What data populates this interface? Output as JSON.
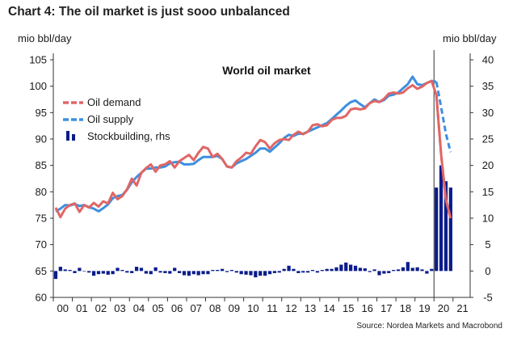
{
  "title": "Chart 4: The oil market is just sooo unbalanced",
  "source": "Source: Nordea Markets and Macrobond",
  "colors": {
    "demand": "#e06666",
    "supply": "#3d8fe0",
    "stock": "#0a1d8a",
    "axis": "#333333",
    "vline": "#333333"
  },
  "chart_data": {
    "type": "line",
    "title": "World oil market",
    "left_axis": {
      "label": "mio bbl/day",
      "ylim": [
        60,
        105
      ],
      "ticks": [
        60,
        65,
        70,
        75,
        80,
        85,
        90,
        95,
        100,
        105
      ]
    },
    "right_axis": {
      "label": "mio bbl/day",
      "ylim": [
        -5,
        40
      ],
      "ticks": [
        -5,
        0,
        5,
        10,
        15,
        20,
        25,
        30,
        35,
        40
      ]
    },
    "x_axis": {
      "xlim": [
        2000,
        2021.9
      ],
      "tick_labels": [
        "00",
        "01",
        "02",
        "03",
        "04",
        "05",
        "06",
        "07",
        "08",
        "09",
        "10",
        "11",
        "12",
        "13",
        "14",
        "15",
        "16",
        "17",
        "18",
        "19",
        "20",
        "21"
      ]
    },
    "grid": false,
    "legend_position": "top-left",
    "vertical_marker_x": 2020.0,
    "series": [
      {
        "name": "Oil demand",
        "axis": "left",
        "style": "solid",
        "points": [
          [
            2000.0,
            77.0
          ],
          [
            2000.25,
            75.2
          ],
          [
            2000.5,
            76.8
          ],
          [
            2000.75,
            77.5
          ],
          [
            2001.0,
            77.8
          ],
          [
            2001.25,
            76.2
          ],
          [
            2001.5,
            77.5
          ],
          [
            2001.75,
            77.0
          ],
          [
            2002.0,
            77.9
          ],
          [
            2002.25,
            77.2
          ],
          [
            2002.5,
            78.2
          ],
          [
            2002.75,
            77.8
          ],
          [
            2003.0,
            79.8
          ],
          [
            2003.25,
            78.6
          ],
          [
            2003.5,
            79.2
          ],
          [
            2003.75,
            80.5
          ],
          [
            2004.0,
            82.5
          ],
          [
            2004.25,
            81.2
          ],
          [
            2004.5,
            83.6
          ],
          [
            2004.75,
            84.5
          ],
          [
            2005.0,
            85.2
          ],
          [
            2005.25,
            83.8
          ],
          [
            2005.5,
            85.0
          ],
          [
            2005.75,
            85.2
          ],
          [
            2006.0,
            85.8
          ],
          [
            2006.25,
            84.6
          ],
          [
            2006.5,
            85.8
          ],
          [
            2006.75,
            86.4
          ],
          [
            2007.0,
            87.0
          ],
          [
            2007.25,
            86.0
          ],
          [
            2007.5,
            87.4
          ],
          [
            2007.75,
            88.5
          ],
          [
            2008.0,
            88.2
          ],
          [
            2008.25,
            86.6
          ],
          [
            2008.5,
            87.2
          ],
          [
            2008.75,
            86.2
          ],
          [
            2009.0,
            84.8
          ],
          [
            2009.25,
            84.6
          ],
          [
            2009.5,
            85.8
          ],
          [
            2009.75,
            86.5
          ],
          [
            2010.0,
            87.4
          ],
          [
            2010.25,
            87.2
          ],
          [
            2010.5,
            88.6
          ],
          [
            2010.75,
            89.8
          ],
          [
            2011.0,
            89.4
          ],
          [
            2011.25,
            88.2
          ],
          [
            2011.5,
            89.2
          ],
          [
            2011.75,
            89.8
          ],
          [
            2012.0,
            90.0
          ],
          [
            2012.25,
            89.8
          ],
          [
            2012.5,
            90.8
          ],
          [
            2012.75,
            91.4
          ],
          [
            2013.0,
            90.9
          ],
          [
            2013.25,
            91.4
          ],
          [
            2013.5,
            92.6
          ],
          [
            2013.75,
            92.8
          ],
          [
            2014.0,
            92.4
          ],
          [
            2014.25,
            92.6
          ],
          [
            2014.5,
            93.6
          ],
          [
            2014.75,
            94.0
          ],
          [
            2015.0,
            94.0
          ],
          [
            2015.25,
            94.4
          ],
          [
            2015.5,
            95.6
          ],
          [
            2015.75,
            95.8
          ],
          [
            2016.0,
            95.6
          ],
          [
            2016.25,
            95.8
          ],
          [
            2016.5,
            96.8
          ],
          [
            2016.75,
            97.2
          ],
          [
            2017.0,
            97.0
          ],
          [
            2017.25,
            97.6
          ],
          [
            2017.5,
            98.6
          ],
          [
            2017.75,
            98.8
          ],
          [
            2018.0,
            98.6
          ],
          [
            2018.25,
            98.8
          ],
          [
            2018.5,
            99.6
          ],
          [
            2018.75,
            100.2
          ],
          [
            2019.0,
            99.5
          ],
          [
            2019.25,
            99.9
          ],
          [
            2019.5,
            100.6
          ],
          [
            2019.75,
            101.0
          ],
          [
            2020.0,
            98.3
          ],
          [
            2020.25,
            87.0
          ],
          [
            2020.5,
            78.5
          ],
          [
            2020.75,
            75.0
          ]
        ]
      },
      {
        "name": "Oil supply",
        "axis": "left",
        "style": "solid",
        "points": [
          [
            2000.0,
            76.3
          ],
          [
            2000.25,
            76.8
          ],
          [
            2000.5,
            77.5
          ],
          [
            2000.75,
            77.4
          ],
          [
            2001.0,
            77.7
          ],
          [
            2001.25,
            77.3
          ],
          [
            2001.5,
            77.5
          ],
          [
            2001.75,
            77.1
          ],
          [
            2002.0,
            76.8
          ],
          [
            2002.25,
            76.3
          ],
          [
            2002.5,
            76.9
          ],
          [
            2002.75,
            77.6
          ],
          [
            2003.0,
            78.8
          ],
          [
            2003.25,
            79.2
          ],
          [
            2003.5,
            79.4
          ],
          [
            2003.75,
            80.4
          ],
          [
            2004.0,
            81.8
          ],
          [
            2004.25,
            82.8
          ],
          [
            2004.5,
            83.6
          ],
          [
            2004.75,
            84.4
          ],
          [
            2005.0,
            84.4
          ],
          [
            2005.25,
            84.6
          ],
          [
            2005.5,
            84.6
          ],
          [
            2005.75,
            84.8
          ],
          [
            2006.0,
            85.4
          ],
          [
            2006.25,
            85.6
          ],
          [
            2006.5,
            85.7
          ],
          [
            2006.75,
            85.2
          ],
          [
            2007.0,
            85.2
          ],
          [
            2007.25,
            85.3
          ],
          [
            2007.5,
            86.0
          ],
          [
            2007.75,
            86.6
          ],
          [
            2008.0,
            86.6
          ],
          [
            2008.25,
            86.6
          ],
          [
            2008.5,
            86.8
          ],
          [
            2008.75,
            86.2
          ],
          [
            2009.0,
            84.8
          ],
          [
            2009.25,
            84.6
          ],
          [
            2009.5,
            85.4
          ],
          [
            2009.75,
            85.8
          ],
          [
            2010.0,
            86.2
          ],
          [
            2010.25,
            86.8
          ],
          [
            2010.5,
            87.4
          ],
          [
            2010.75,
            88.2
          ],
          [
            2011.0,
            88.2
          ],
          [
            2011.25,
            87.6
          ],
          [
            2011.5,
            88.4
          ],
          [
            2011.75,
            89.2
          ],
          [
            2012.0,
            90.2
          ],
          [
            2012.25,
            90.8
          ],
          [
            2012.5,
            90.6
          ],
          [
            2012.75,
            91.0
          ],
          [
            2013.0,
            91.0
          ],
          [
            2013.25,
            91.4
          ],
          [
            2013.5,
            91.8
          ],
          [
            2013.75,
            92.2
          ],
          [
            2014.0,
            92.6
          ],
          [
            2014.25,
            93.0
          ],
          [
            2014.5,
            93.8
          ],
          [
            2014.75,
            94.6
          ],
          [
            2015.0,
            95.4
          ],
          [
            2015.25,
            96.3
          ],
          [
            2015.5,
            97.0
          ],
          [
            2015.75,
            97.3
          ],
          [
            2016.0,
            96.6
          ],
          [
            2016.25,
            96.0
          ],
          [
            2016.5,
            96.8
          ],
          [
            2016.75,
            97.5
          ],
          [
            2017.0,
            97.0
          ],
          [
            2017.25,
            97.4
          ],
          [
            2017.5,
            98.2
          ],
          [
            2017.75,
            98.4
          ],
          [
            2018.0,
            98.8
          ],
          [
            2018.25,
            99.6
          ],
          [
            2018.5,
            100.4
          ],
          [
            2018.75,
            101.8
          ],
          [
            2019.0,
            100.4
          ],
          [
            2019.25,
            100.2
          ],
          [
            2019.5,
            100.6
          ],
          [
            2019.75,
            101.0
          ],
          [
            2020.0,
            100.8
          ]
        ]
      },
      {
        "name": "Oil demand",
        "axis": "left",
        "style": "dashed",
        "points": [
          [
            2020.0,
            98.3
          ],
          [
            2020.25,
            87.0
          ],
          [
            2020.5,
            78.5
          ],
          [
            2020.75,
            75.0
          ]
        ]
      },
      {
        "name": "Oil supply",
        "axis": "left",
        "style": "dashed",
        "points": [
          [
            2020.0,
            100.8
          ],
          [
            2020.25,
            96.0
          ],
          [
            2020.5,
            91.0
          ],
          [
            2020.75,
            87.5
          ]
        ]
      }
    ],
    "bars": {
      "name": "Stockbuilding, rhs",
      "axis": "right",
      "points": [
        [
          2000.0,
          -1.5
        ],
        [
          2000.25,
          0.8
        ],
        [
          2000.5,
          0.3
        ],
        [
          2000.75,
          0.2
        ],
        [
          2001.0,
          -0.4
        ],
        [
          2001.25,
          0.6
        ],
        [
          2001.5,
          0.0
        ],
        [
          2001.75,
          -0.3
        ],
        [
          2002.0,
          -0.9
        ],
        [
          2002.25,
          -0.6
        ],
        [
          2002.5,
          -0.5
        ],
        [
          2002.75,
          -0.7
        ],
        [
          2003.0,
          -0.6
        ],
        [
          2003.25,
          0.6
        ],
        [
          2003.5,
          0.2
        ],
        [
          2003.75,
          -0.3
        ],
        [
          2004.0,
          -0.4
        ],
        [
          2004.25,
          0.8
        ],
        [
          2004.5,
          0.6
        ],
        [
          2004.75,
          -0.5
        ],
        [
          2005.0,
          -0.6
        ],
        [
          2005.25,
          0.7
        ],
        [
          2005.5,
          -0.3
        ],
        [
          2005.75,
          -0.4
        ],
        [
          2006.0,
          -0.5
        ],
        [
          2006.25,
          0.6
        ],
        [
          2006.5,
          -0.4
        ],
        [
          2006.75,
          -0.8
        ],
        [
          2007.0,
          -0.9
        ],
        [
          2007.25,
          -0.6
        ],
        [
          2007.5,
          -0.8
        ],
        [
          2007.75,
          -0.6
        ],
        [
          2008.0,
          -0.6
        ],
        [
          2008.25,
          0.2
        ],
        [
          2008.5,
          0.2
        ],
        [
          2008.75,
          0.4
        ],
        [
          2009.0,
          -0.2
        ],
        [
          2009.25,
          0.2
        ],
        [
          2009.5,
          -0.3
        ],
        [
          2009.75,
          -0.6
        ],
        [
          2010.0,
          -0.7
        ],
        [
          2010.25,
          -0.8
        ],
        [
          2010.5,
          -1.2
        ],
        [
          2010.75,
          -0.9
        ],
        [
          2011.0,
          -0.9
        ],
        [
          2011.25,
          -0.6
        ],
        [
          2011.5,
          -0.4
        ],
        [
          2011.75,
          -0.3
        ],
        [
          2012.0,
          0.4
        ],
        [
          2012.25,
          1.0
        ],
        [
          2012.5,
          0.4
        ],
        [
          2012.75,
          -0.4
        ],
        [
          2013.0,
          -0.3
        ],
        [
          2013.25,
          -0.3
        ],
        [
          2013.5,
          0.2
        ],
        [
          2013.75,
          -0.3
        ],
        [
          2014.0,
          0.2
        ],
        [
          2014.25,
          0.4
        ],
        [
          2014.5,
          0.4
        ],
        [
          2014.75,
          0.7
        ],
        [
          2015.0,
          1.2
        ],
        [
          2015.25,
          1.6
        ],
        [
          2015.5,
          1.2
        ],
        [
          2015.75,
          1.0
        ],
        [
          2016.0,
          0.6
        ],
        [
          2016.25,
          0.5
        ],
        [
          2016.5,
          -0.2
        ],
        [
          2016.75,
          0.3
        ],
        [
          2017.0,
          -0.8
        ],
        [
          2017.25,
          -0.5
        ],
        [
          2017.5,
          -0.4
        ],
        [
          2017.75,
          0.2
        ],
        [
          2018.0,
          0.3
        ],
        [
          2018.25,
          0.7
        ],
        [
          2018.5,
          1.7
        ],
        [
          2018.75,
          0.6
        ],
        [
          2019.0,
          0.7
        ],
        [
          2019.25,
          0.3
        ],
        [
          2019.5,
          -0.5
        ],
        [
          2019.75,
          0.4
        ],
        [
          2020.0,
          15.8
        ],
        [
          2020.25,
          20.0
        ],
        [
          2020.5,
          17.0
        ],
        [
          2020.75,
          15.8
        ]
      ]
    }
  }
}
